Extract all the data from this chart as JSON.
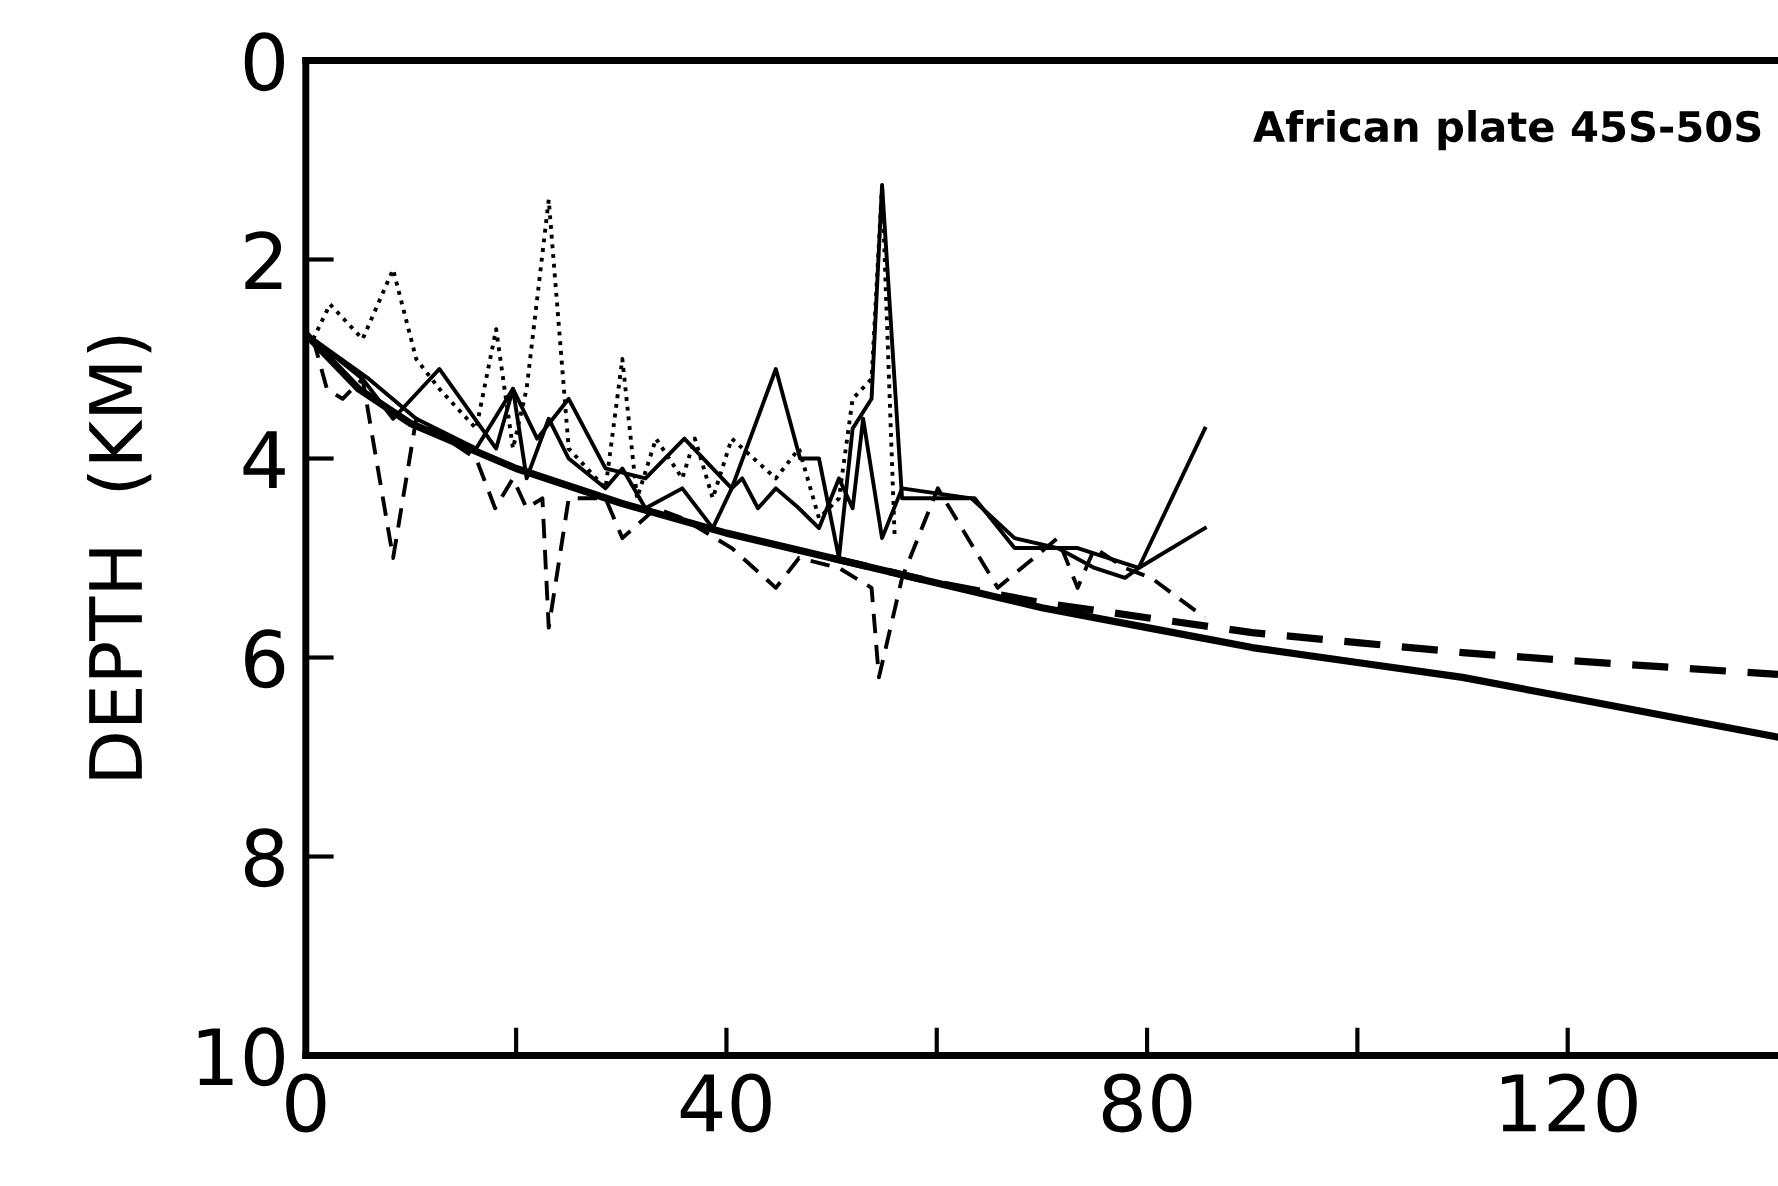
{
  "chart_data": {
    "type": "line",
    "ylabel": "DEPTH  (KM)",
    "annotations": [
      "African plate 45S-50S"
    ],
    "xlim": [
      0,
      140
    ],
    "ylim": [
      10,
      0
    ],
    "xticks": [
      0,
      {
        "value": 20,
        "label": null
      },
      40,
      {
        "value": 60,
        "label": null
      },
      80,
      {
        "value": 100,
        "label": null
      },
      120
    ],
    "yticks": [
      0,
      2,
      4,
      6,
      8,
      10
    ],
    "grid": false,
    "legend": false,
    "marker": "none",
    "series": [
      {
        "color": "#000000",
        "line_style": "solid",
        "x": [
          0,
          5,
          10,
          20,
          30,
          40,
          50,
          60,
          70,
          80,
          90,
          100,
          110,
          120,
          130,
          140
        ],
        "values": [
          2.75,
          3.3,
          3.65,
          4.1,
          4.45,
          4.75,
          5.0,
          5.25,
          5.5,
          5.7,
          5.9,
          6.05,
          6.2,
          6.4,
          6.6,
          6.8
        ]
      },
      {
        "color": "#000000",
        "line_style": "dashed",
        "x": [
          50,
          60,
          70,
          80,
          90,
          100,
          110,
          120,
          130,
          140
        ],
        "values": [
          5.0,
          5.25,
          5.45,
          5.6,
          5.75,
          5.85,
          5.95,
          6.03,
          6.1,
          6.17
        ]
      },
      {
        "color": "#000000",
        "line_style": "solid",
        "x": [
          0.7,
          6,
          10.5,
          16.2,
          19.7,
          22,
          25,
          28.5,
          32.3,
          36,
          40.5,
          44.7,
          47,
          48.8,
          50.7,
          52,
          53.8,
          54.8,
          56.7,
          63.6,
          67.4,
          73.4,
          79.2,
          85.5
        ],
        "values": [
          2.8,
          3.2,
          3.6,
          3.9,
          3.3,
          3.8,
          3.4,
          4.1,
          4.2,
          3.8,
          4.3,
          3.1,
          4.0,
          4.0,
          5.0,
          3.7,
          3.4,
          1.25,
          4.4,
          4.4,
          4.9,
          4.9,
          5.1,
          3.7
        ]
      },
      {
        "color": "#000000",
        "line_style": "solid",
        "x": [
          0.7,
          5.4,
          8.3,
          12.7,
          18.1,
          19.7,
          21,
          23.1,
          25,
          28.5,
          30.1,
          32.3,
          35.8,
          38.7,
          40.5,
          41.5,
          43,
          44.7,
          46.9,
          48.8,
          50.7,
          52,
          53,
          54.8,
          56.7,
          63.3,
          67.4,
          71.5,
          75,
          77.9,
          79.2,
          85.5
        ],
        "values": [
          2.8,
          3.2,
          3.6,
          3.1,
          3.9,
          3.3,
          4.2,
          3.6,
          4.0,
          4.3,
          4.1,
          4.5,
          4.3,
          4.7,
          4.3,
          4.2,
          4.5,
          4.3,
          4.5,
          4.7,
          4.2,
          4.5,
          3.6,
          4.8,
          4.3,
          4.4,
          4.8,
          4.9,
          5.1,
          5.2,
          5.1,
          4.7
        ]
      },
      {
        "color": "#000000",
        "line_style": "dotted",
        "x": [
          0.7,
          2.3,
          5.4,
          8.3,
          10.5,
          12.7,
          16.2,
          18.1,
          19.7,
          21,
          23.1,
          25,
          28.5,
          30.1,
          31.5,
          33.3,
          35.8,
          37,
          38.7,
          40.5,
          44.7,
          46.9,
          48.8,
          50.7,
          52,
          53.8,
          54.8,
          56
        ],
        "values": [
          2.8,
          2.45,
          2.8,
          2.1,
          3.0,
          3.3,
          3.7,
          2.7,
          3.9,
          3.3,
          1.4,
          3.9,
          4.3,
          3.0,
          4.4,
          3.8,
          4.2,
          3.8,
          4.4,
          3.8,
          4.2,
          3.9,
          4.6,
          4.4,
          3.4,
          3.2,
          1.25,
          4.8
        ]
      },
      {
        "color": "#000000",
        "line_style": "dashed",
        "x": [
          0.7,
          2,
          3.5,
          5.4,
          8.3,
          10.5,
          16.2,
          18,
          19.7,
          21,
          22.5,
          23.1,
          25,
          28.5,
          30.1,
          33.3,
          35.8,
          40.5,
          44.7,
          46.9,
          50.7,
          53.8,
          54.5,
          56.7,
          60.1,
          65.8,
          71.5,
          73.4,
          75,
          77.9,
          80.4,
          85.5
        ],
        "values": [
          2.8,
          3.3,
          3.4,
          3.2,
          5.0,
          3.6,
          4.0,
          4.5,
          4.2,
          4.5,
          4.4,
          5.7,
          4.4,
          4.4,
          4.8,
          4.5,
          4.6,
          4.9,
          5.3,
          5.0,
          5.1,
          5.3,
          6.2,
          5.2,
          4.3,
          5.3,
          4.8,
          5.3,
          4.9,
          5.1,
          5.2,
          5.6
        ]
      }
    ]
  }
}
